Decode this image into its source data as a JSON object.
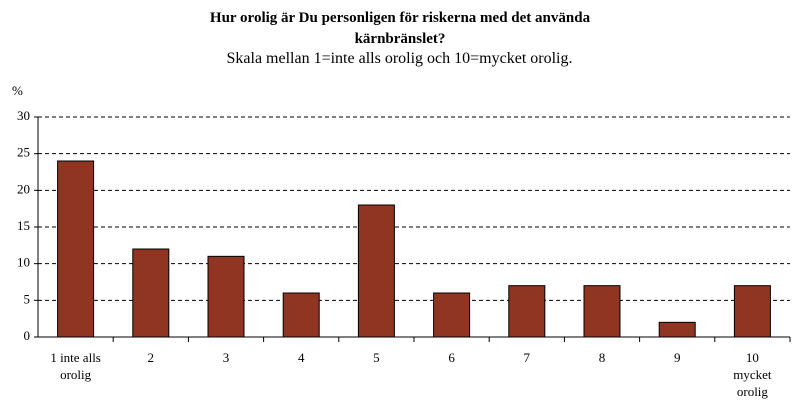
{
  "chart_data": {
    "type": "bar",
    "title": "Hur orolig är Du personligen för riskerna med det använda kärnbränslet?",
    "subtitle": "Skala mellan 1=inte alls orolig och 10=mycket orolig.",
    "y_label": "%",
    "categories": [
      "1 inte alls orolig",
      "2",
      "3",
      "4",
      "5",
      "6",
      "7",
      "8",
      "9",
      "10 mycket orolig"
    ],
    "values": [
      24,
      12,
      11,
      6,
      18,
      6,
      7,
      7,
      2,
      7
    ],
    "color": "#8f3522",
    "ylim": [
      0,
      30
    ],
    "yticks": [
      0,
      5,
      10,
      15,
      20,
      25,
      30
    ],
    "grid": true
  }
}
